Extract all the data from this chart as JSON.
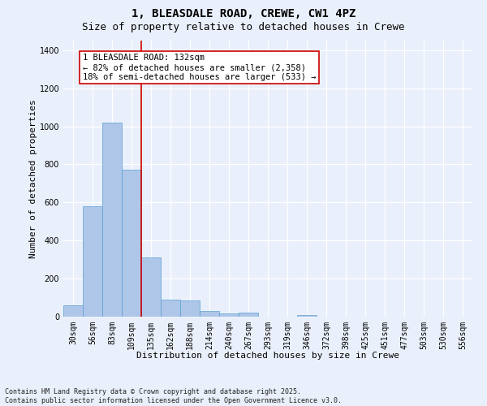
{
  "title_line1": "1, BLEASDALE ROAD, CREWE, CW1 4PZ",
  "title_line2": "Size of property relative to detached houses in Crewe",
  "xlabel": "Distribution of detached houses by size in Crewe",
  "ylabel": "Number of detached properties",
  "bar_labels": [
    "30sqm",
    "56sqm",
    "83sqm",
    "109sqm",
    "135sqm",
    "162sqm",
    "188sqm",
    "214sqm",
    "240sqm",
    "267sqm",
    "293sqm",
    "319sqm",
    "346sqm",
    "372sqm",
    "398sqm",
    "425sqm",
    "451sqm",
    "477sqm",
    "503sqm",
    "530sqm",
    "556sqm"
  ],
  "bar_values": [
    60,
    580,
    1020,
    770,
    310,
    90,
    85,
    30,
    15,
    20,
    0,
    0,
    10,
    0,
    0,
    0,
    0,
    0,
    0,
    0,
    0
  ],
  "bar_color": "#aec6e8",
  "bar_edge_color": "#5a9fd4",
  "vline_color": "#cc0000",
  "vline_x_index": 3.5,
  "annotation_box_text": "1 BLEASDALE ROAD: 132sqm\n← 82% of detached houses are smaller (2,358)\n18% of semi-detached houses are larger (533) →",
  "ylim": [
    0,
    1450
  ],
  "yticks": [
    0,
    200,
    400,
    600,
    800,
    1000,
    1200,
    1400
  ],
  "background_color": "#eaf0fb",
  "plot_background": "#eaf0fb",
  "grid_color": "#ffffff",
  "footnote": "Contains HM Land Registry data © Crown copyright and database right 2025.\nContains public sector information licensed under the Open Government Licence v3.0.",
  "title_fontsize": 10,
  "subtitle_fontsize": 9,
  "axis_label_fontsize": 8,
  "tick_fontsize": 7,
  "annot_fontsize": 7.5,
  "footnote_fontsize": 6
}
